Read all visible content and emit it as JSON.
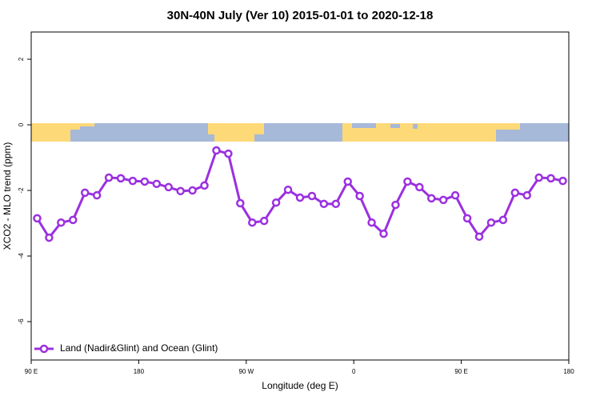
{
  "chart_data": {
    "type": "line",
    "title": "30N-40N July (Ver 10)   2015-01-01 to 2020-12-18",
    "x_label": "Longitude (deg E)",
    "y_label": "XCO2 - MLO trend (ppm)",
    "legend": "Land (Nadir&Glint) and Ocean (Glint)",
    "legend_position": "bottom-left",
    "color": "#9b30e0",
    "x": [
      95,
      105,
      115,
      125,
      135,
      145,
      155,
      165,
      175,
      185,
      195,
      205,
      215,
      225,
      235,
      245,
      255,
      265,
      275,
      285,
      295,
      305,
      315,
      325,
      335,
      345,
      355,
      365,
      375,
      385,
      395,
      405,
      415,
      425,
      435,
      445,
      455,
      465,
      475,
      485,
      495,
      505,
      515,
      525,
      535
    ],
    "values": [
      -2.85,
      -3.44,
      -2.98,
      -2.9,
      -2.07,
      -2.15,
      -1.61,
      -1.63,
      -1.71,
      -1.73,
      -1.8,
      -1.9,
      -2.02,
      -2.0,
      -1.85,
      -0.78,
      -0.88,
      -2.39,
      -2.98,
      -2.93,
      -2.37,
      -1.98,
      -2.22,
      -2.17,
      -2.41,
      -2.41,
      -1.73,
      -2.17,
      -2.98,
      -3.32,
      -2.44,
      -1.73,
      -1.9,
      -2.24,
      -2.29,
      -2.15,
      -2.85,
      -3.41,
      -2.98,
      -2.9,
      -2.07,
      -2.15,
      -1.61,
      -1.63,
      -1.71
    ],
    "xlim": [
      90,
      540
    ],
    "xticks": [
      {
        "value": 90,
        "label": "90 E"
      },
      180,
      {
        "value": 270,
        "label": "90 W"
      },
      {
        "value": 360,
        "label": "0"
      },
      {
        "value": 450,
        "label": "90 E"
      },
      {
        "value": 540,
        "label": "180"
      }
    ],
    "ylim": [
      -7.17,
      2.83
    ],
    "yticks": [
      -6,
      -4,
      -2,
      0,
      2
    ]
  }
}
